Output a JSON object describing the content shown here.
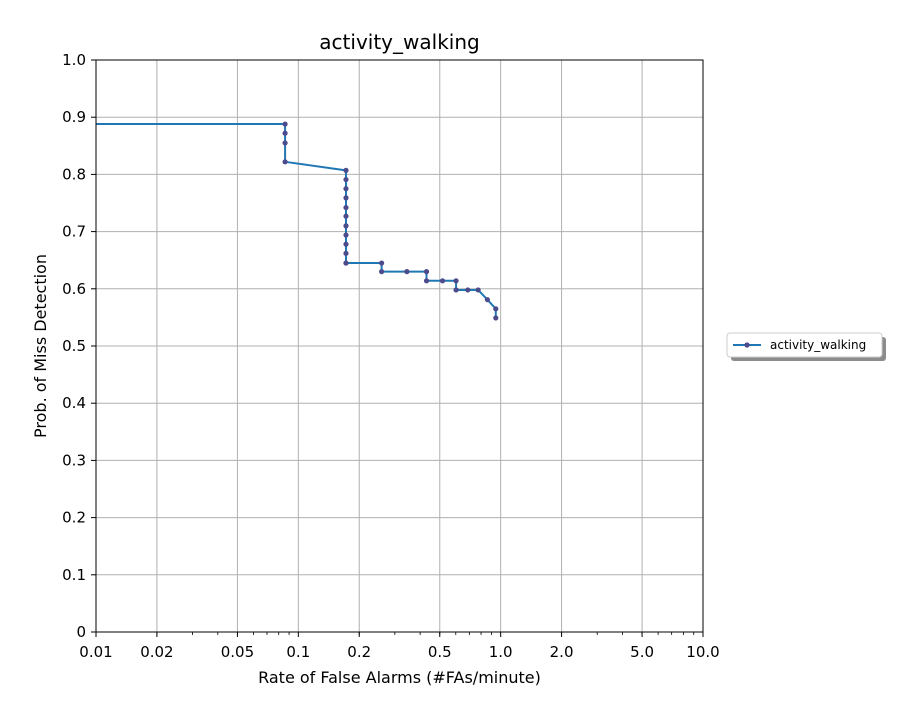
{
  "chart_data": {
    "type": "line",
    "title": "activity_walking",
    "xlabel": "Rate of False Alarms (#FAs/minute)",
    "ylabel": "Prob. of Miss Detection",
    "xscale": "log",
    "xlim": [
      0.01,
      10.0
    ],
    "ylim": [
      0,
      1.0
    ],
    "grid": true,
    "legend_position": "outside-right",
    "x_ticks": [
      0.01,
      0.02,
      0.05,
      0.1,
      0.2,
      0.5,
      1.0,
      2.0,
      5.0,
      10.0
    ],
    "x_tick_labels": [
      "0.01",
      "0.02",
      "0.05",
      "0.1",
      "0.2",
      "0.5",
      "1.0",
      "2.0",
      "5.0",
      "10.0"
    ],
    "y_ticks": [
      0,
      0.1,
      0.2,
      0.3,
      0.4,
      0.5,
      0.6,
      0.7,
      0.8,
      0.9,
      1.0
    ],
    "y_tick_labels": [
      "0",
      "0.1",
      "0.2",
      "0.3",
      "0.4",
      "0.5",
      "0.6",
      "0.7",
      "0.8",
      "0.9",
      "1.0"
    ],
    "series": [
      {
        "name": "activity_walking",
        "color": "#1f77b4",
        "marker_color": "#4c4c8c",
        "x": [
          0.01,
          0.086,
          0.086,
          0.086,
          0.086,
          0.172,
          0.172,
          0.172,
          0.172,
          0.172,
          0.172,
          0.172,
          0.172,
          0.172,
          0.172,
          0.172,
          0.172,
          0.258,
          0.258,
          0.344,
          0.43,
          0.43,
          0.516,
          0.602,
          0.602,
          0.688,
          0.774,
          0.86,
          0.946,
          0.946
        ],
        "y": [
          0.888,
          0.888,
          0.872,
          0.855,
          0.822,
          0.807,
          0.791,
          0.775,
          0.759,
          0.742,
          0.727,
          0.71,
          0.694,
          0.678,
          0.662,
          0.645,
          0.645,
          0.645,
          0.63,
          0.63,
          0.63,
          0.614,
          0.614,
          0.614,
          0.598,
          0.598,
          0.598,
          0.581,
          0.565,
          0.549
        ],
        "marker_start_index": 1
      }
    ]
  }
}
